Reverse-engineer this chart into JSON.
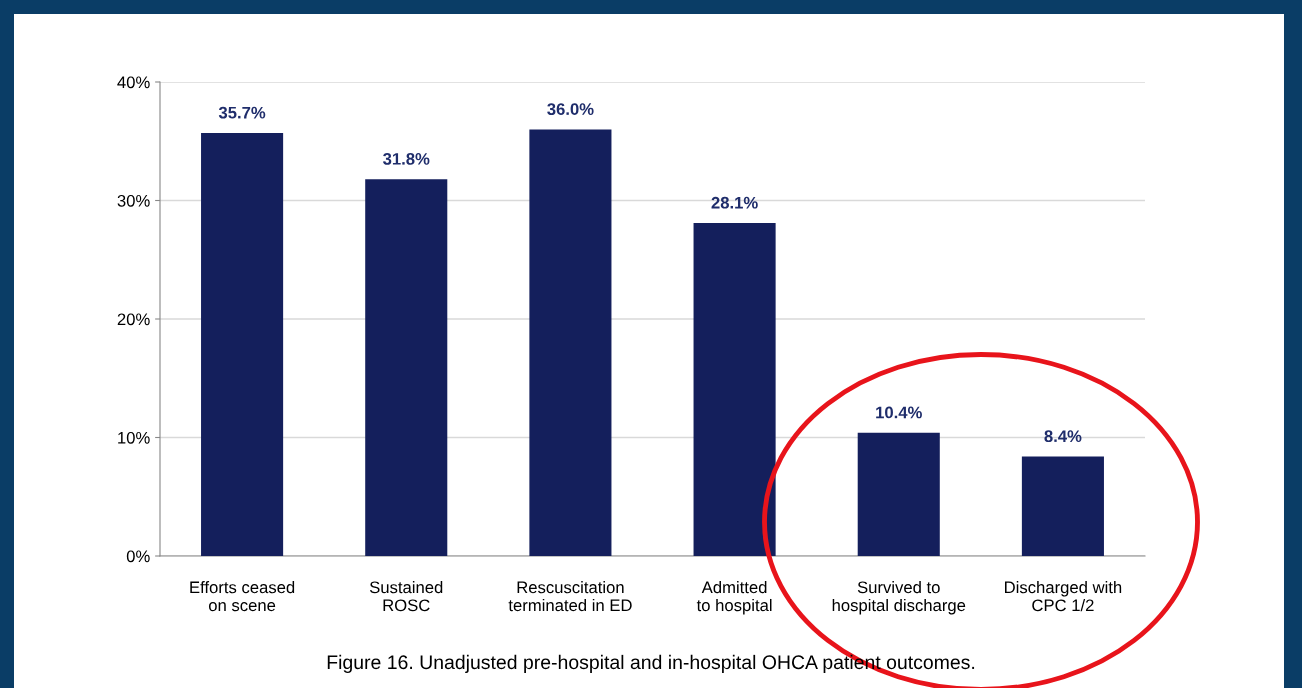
{
  "chart_data": {
    "type": "bar",
    "categories": [
      "Efforts ceased\non scene",
      "Sustained\nROSC",
      "Rescuscitation\nterminated in ED",
      "Admitted\nto hospital",
      "Survived to\nhospital discharge",
      "Discharged with\nCPC 1/2"
    ],
    "values": [
      35.7,
      31.8,
      36.0,
      28.1,
      10.4,
      8.4
    ],
    "value_labels": [
      "35.7%",
      "31.8%",
      "36.0%",
      "28.1%",
      "10.4%",
      "8.4%"
    ],
    "color": "#141f5c",
    "ylim": [
      0,
      40
    ],
    "yticks": [
      {
        "value": 0,
        "label": "0%"
      },
      {
        "value": 10,
        "label": "10%"
      },
      {
        "value": 20,
        "label": "20%"
      },
      {
        "value": 30,
        "label": "30%"
      },
      {
        "value": 40,
        "label": "40%"
      }
    ],
    "grid": "y",
    "annotations": [
      "Figure 16. Unadjusted pre-hospital and in-hospital OHCA patient outcomes."
    ]
  }
}
